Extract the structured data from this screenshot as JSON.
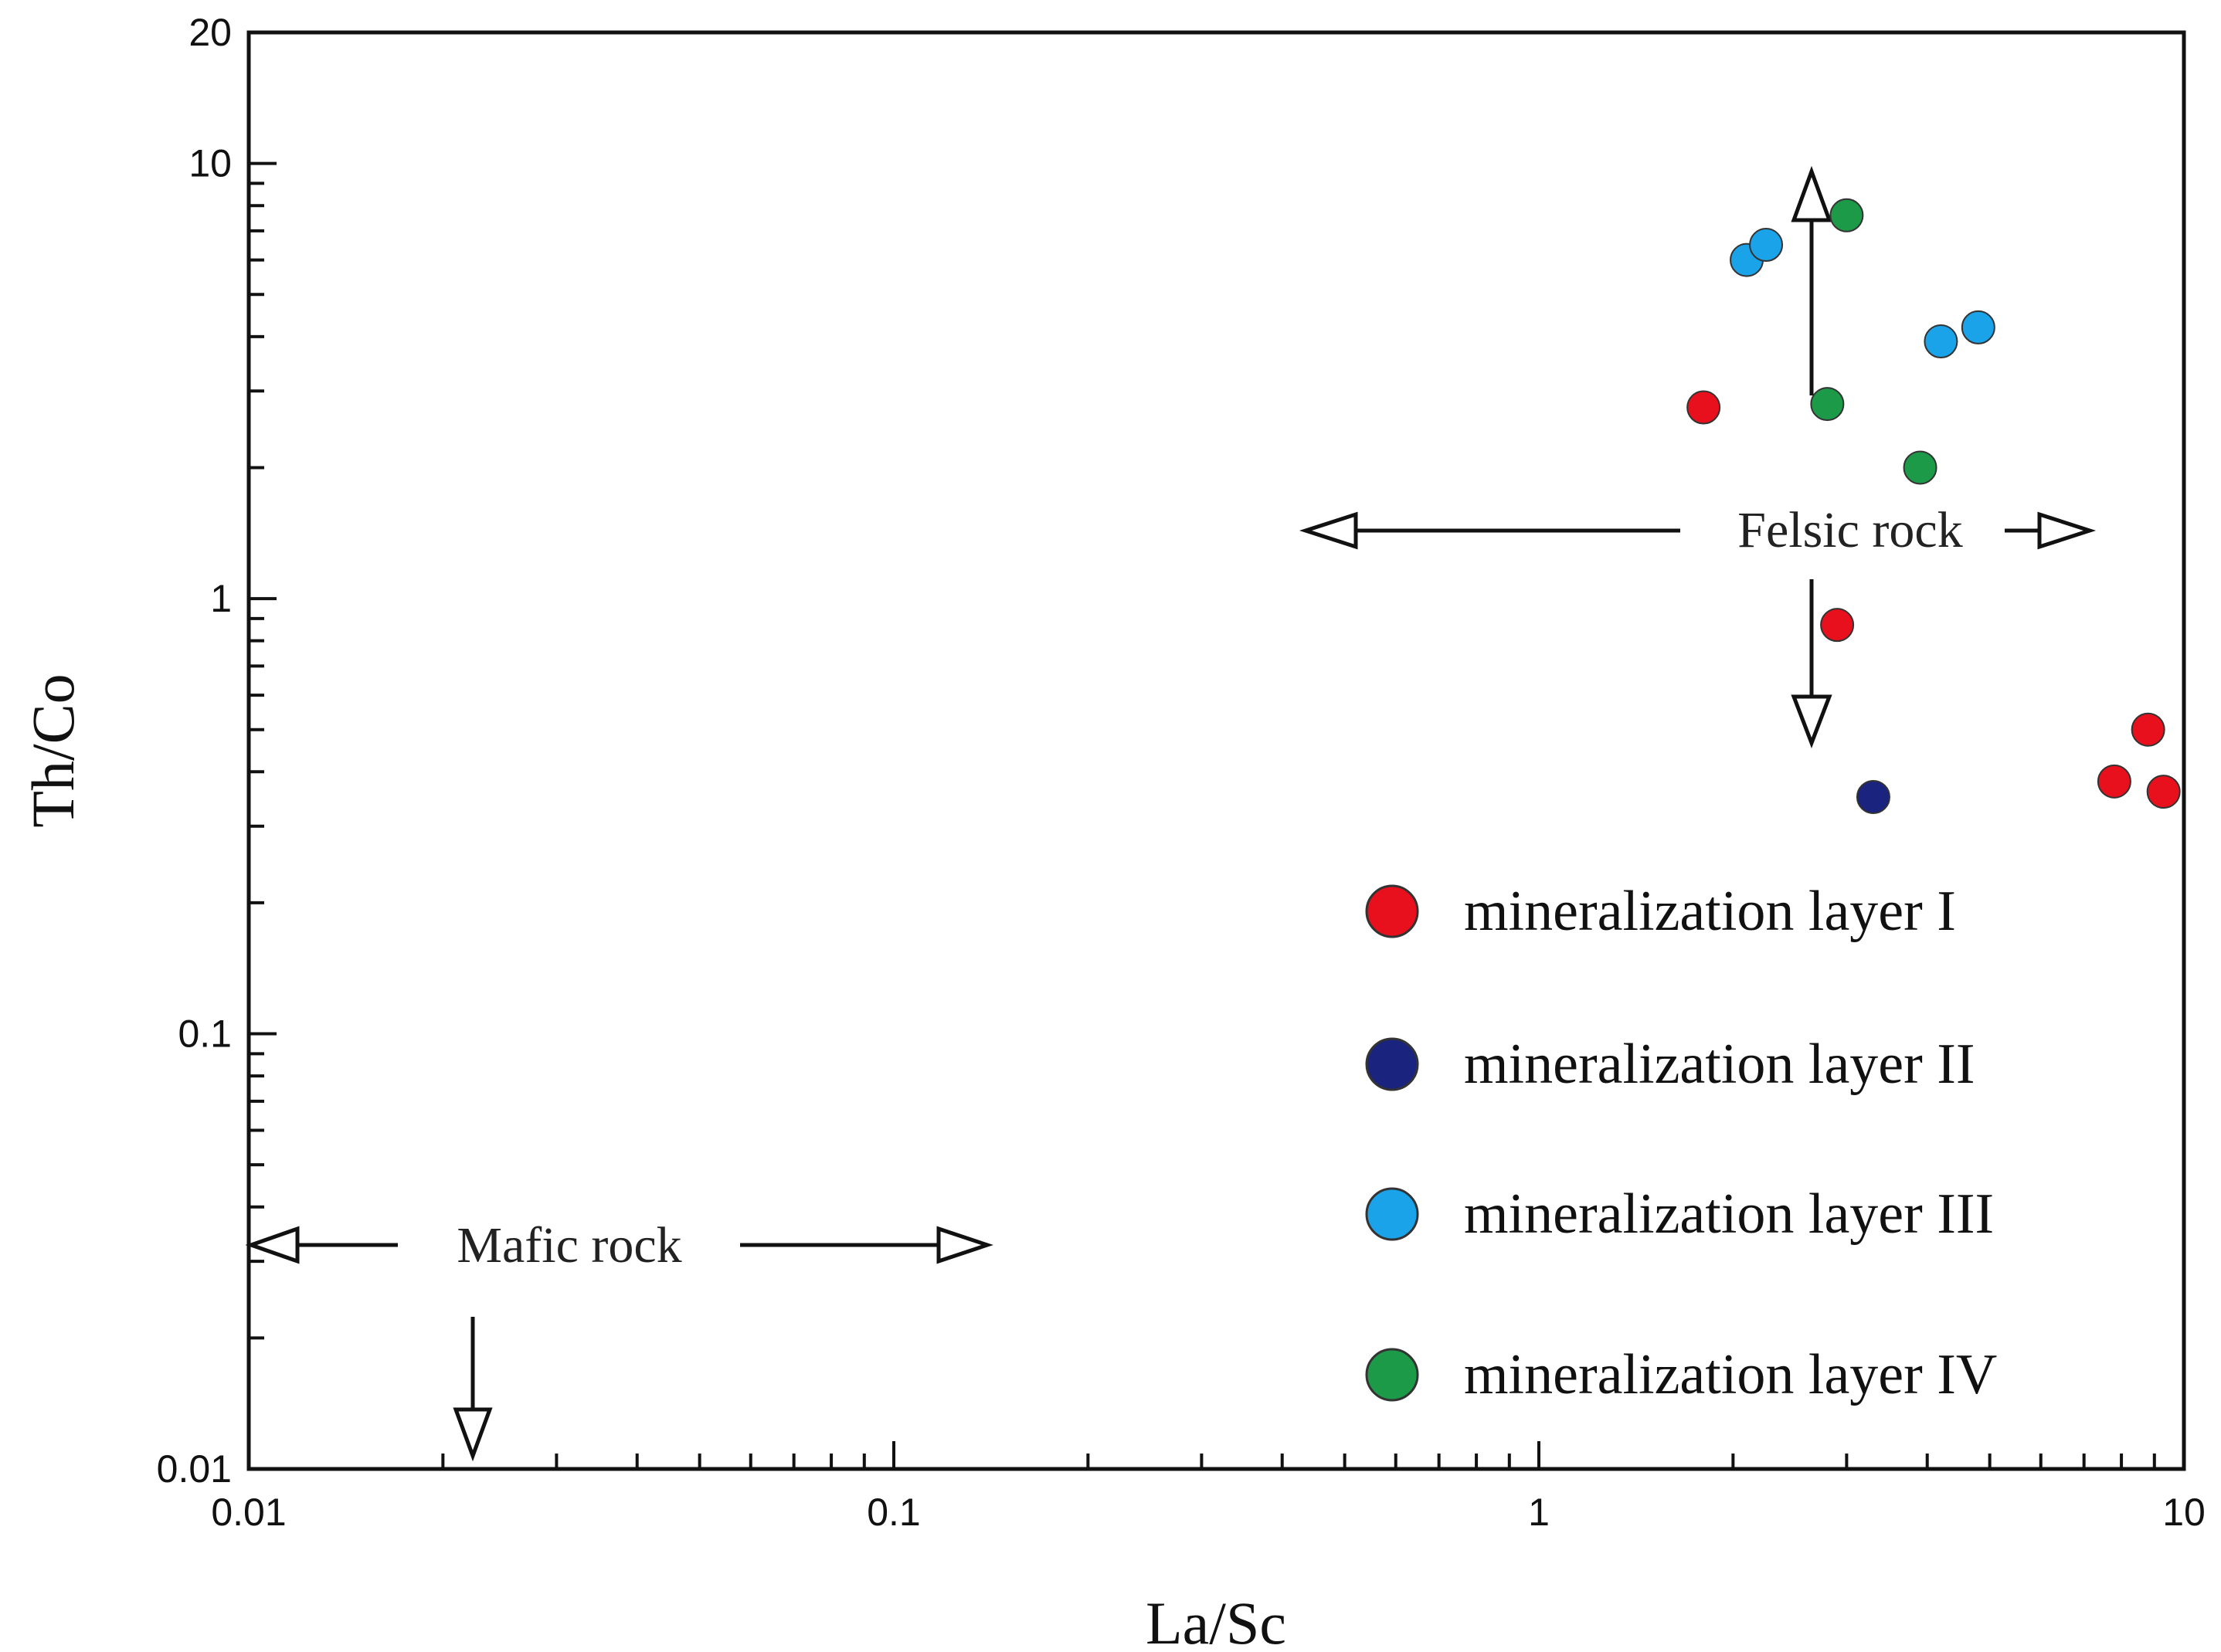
{
  "chart_data": {
    "type": "scatter",
    "xlabel": "La/Sc",
    "ylabel": "Th/Co",
    "xscale": "log",
    "yscale": "log",
    "xlim": [
      0.01,
      10
    ],
    "ylim": [
      0.01,
      20
    ],
    "x_ticks": [
      "0.01",
      "0.1",
      "1",
      "10"
    ],
    "y_ticks": [
      "0.01",
      "0.1",
      "1",
      "10",
      "20"
    ],
    "grid": false,
    "legend_position": "bottom-right",
    "annotations": {
      "felsic": "Felsic rock",
      "mafic": "Mafic rock"
    },
    "series": [
      {
        "name": "mineralization layer I",
        "color": "#e8101c",
        "points": [
          [
            1.8,
            2.75
          ],
          [
            2.9,
            0.87
          ],
          [
            8.8,
            0.5
          ],
          [
            7.8,
            0.38
          ],
          [
            9.3,
            0.36
          ]
        ]
      },
      {
        "name": "mineralization layer II",
        "color": "#1a237e",
        "points": [
          [
            3.3,
            0.35
          ]
        ]
      },
      {
        "name": "mineralization layer III",
        "color": "#1aa3e8",
        "points": [
          [
            2.1,
            6.0
          ],
          [
            2.25,
            6.5
          ],
          [
            4.2,
            3.9
          ],
          [
            4.8,
            4.2
          ]
        ]
      },
      {
        "name": "mineralization layer IV",
        "color": "#1c9a48",
        "points": [
          [
            3.0,
            7.6
          ],
          [
            2.8,
            2.8
          ],
          [
            3.9,
            2.0
          ]
        ]
      }
    ]
  }
}
